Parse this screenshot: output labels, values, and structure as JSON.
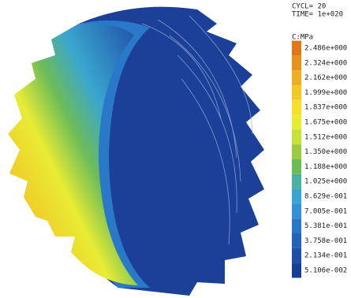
{
  "header": {
    "lines": [
      "CYCL= 20",
      "TIME= 1e+020"
    ]
  },
  "legend": {
    "title": "C:MPa",
    "items": [
      {
        "label": "2.486e+000",
        "color": "#e2761a"
      },
      {
        "label": "2.324e+000",
        "color": "#e8921c"
      },
      {
        "label": "2.162e+000",
        "color": "#eeae22"
      },
      {
        "label": "1.999e+000",
        "color": "#f2c826"
      },
      {
        "label": "1.837e+000",
        "color": "#f4e02c"
      },
      {
        "label": "1.675e+000",
        "color": "#e8ec34"
      },
      {
        "label": "1.512e+000",
        "color": "#c8e03a"
      },
      {
        "label": "1.350e+000",
        "color": "#9ccc44"
      },
      {
        "label": "1.188e+000",
        "color": "#6cbc58"
      },
      {
        "label": "1.025e+000",
        "color": "#4cb0a0"
      },
      {
        "label": "8.629e-001",
        "color": "#3aa6d0"
      },
      {
        "label": "7.005e-001",
        "color": "#3290d6"
      },
      {
        "label": "5.381e-001",
        "color": "#2a78c8"
      },
      {
        "label": "3.758e-001",
        "color": "#2462b6"
      },
      {
        "label": "2.134e-001",
        "color": "#1e4ea6"
      },
      {
        "label": "5.106e-002",
        "color": "#183e96"
      }
    ]
  }
}
